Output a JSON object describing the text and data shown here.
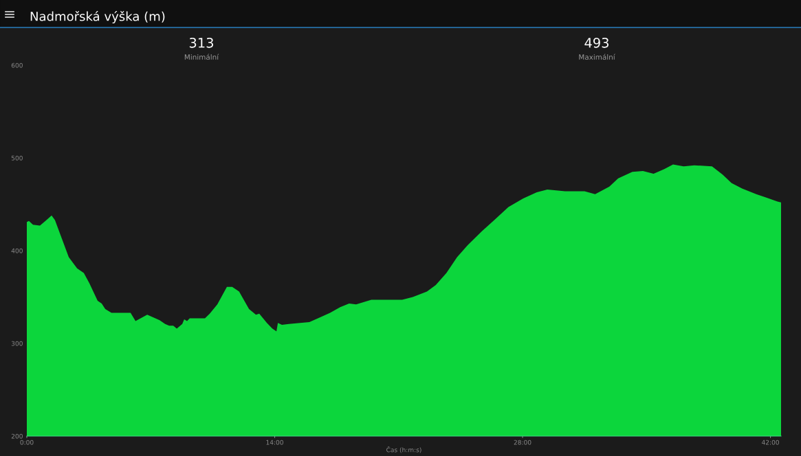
{
  "chart_data": {
    "type": "area",
    "title": "Nadmořská výška (m)",
    "xlabel": "Čas (h:m:s)",
    "annotations": [
      "313",
      "Minimální",
      "493",
      "Maximální"
    ],
    "x": [
      0,
      0.12,
      0.35,
      0.74,
      1.05,
      1.4,
      1.59,
      1.98,
      2.37,
      2.84,
      3.22,
      3.53,
      4.0,
      4.23,
      4.43,
      4.78,
      5.86,
      6.14,
      6.8,
      7.26,
      7.5,
      7.81,
      8.04,
      8.27,
      8.47,
      8.78,
      8.89,
      9.05,
      9.2,
      10.06,
      10.33,
      10.76,
      11.3,
      11.6,
      11.99,
      12.55,
      12.94,
      13.13,
      13.56,
      13.87,
      14.1,
      14.18,
      14.41,
      14.8,
      15.96,
      16.55,
      17.13,
      17.7,
      18.2,
      18.6,
      19.46,
      20.2,
      21.2,
      21.8,
      22.6,
      23.1,
      23.7,
      24.3,
      24.9,
      25.7,
      26.4,
      27.2,
      28.0,
      28.8,
      29.4,
      29.9,
      30.4,
      31.5,
      32.1,
      32.9,
      33.4,
      34.2,
      34.8,
      35.4,
      36.0,
      36.5,
      37.1,
      37.7,
      38.7,
      39.3,
      39.8,
      40.4,
      41.2,
      41.8,
      42.4,
      42.6
    ],
    "series": [
      {
        "color": "#0cd63c",
        "values": [
          431,
          432,
          428,
          427,
          432,
          438,
          433,
          413,
          393,
          381,
          376,
          365,
          346,
          343,
          337,
          333,
          333,
          324,
          331,
          327,
          325,
          321,
          319,
          319,
          316,
          321,
          326,
          324,
          327,
          327,
          332,
          342,
          361,
          361,
          356,
          337,
          331,
          332,
          322,
          316,
          313,
          322,
          320,
          321,
          323,
          328,
          333,
          339,
          343,
          342,
          347,
          347,
          347,
          350,
          356,
          363,
          376,
          393,
          406,
          421,
          433,
          447,
          456,
          463,
          466,
          465,
          464,
          464,
          461,
          469,
          478,
          485,
          486,
          483,
          488,
          493,
          491,
          492,
          491,
          482,
          473,
          467,
          461,
          457,
          453,
          452
        ]
      }
    ],
    "xlim": [
      0,
      42.6
    ],
    "xticks": [
      {
        "value": 0,
        "label": "0:00"
      },
      {
        "value": 14,
        "label": "14:00"
      },
      {
        "value": 28,
        "label": "28:00"
      },
      {
        "value": 42,
        "label": "42:00"
      }
    ],
    "ylim": [
      200,
      600
    ],
    "yticks": [
      200,
      300,
      400,
      500,
      600
    ],
    "grid": false,
    "legend": false
  }
}
